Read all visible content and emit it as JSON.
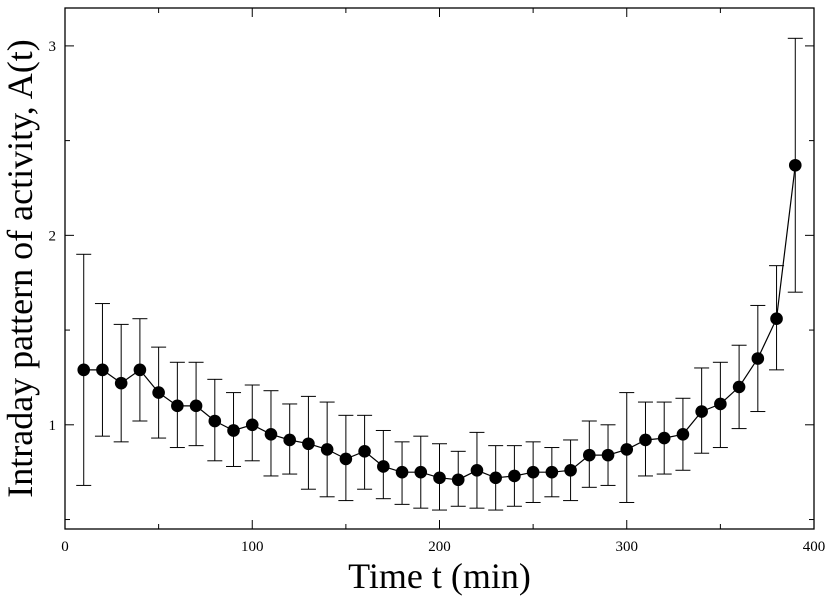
{
  "chart_data": {
    "type": "line",
    "xlabel": "Time t (min)",
    "ylabel": "Intraday pattern of activity, A(t)",
    "xlim": [
      0,
      400
    ],
    "ylim": [
      0.45,
      3.2
    ],
    "x_ticks": [
      0,
      100,
      200,
      300,
      400
    ],
    "y_ticks": [
      1,
      2,
      3
    ],
    "x_tick_labels": [
      "0",
      "100",
      "200",
      "300",
      "400"
    ],
    "y_tick_labels": [
      "1",
      "2",
      "3"
    ],
    "grid": false,
    "legend": "none",
    "marker": "filled-circle",
    "error_bars": true,
    "colors": {
      "series": "#000000",
      "axes": "#000000",
      "background": "#ffffff"
    },
    "series": [
      {
        "x": [
          10,
          20,
          30,
          40,
          50,
          60,
          70,
          80,
          90,
          100,
          110,
          120,
          130,
          140,
          150,
          160,
          170,
          180,
          190,
          200,
          210,
          220,
          230,
          240,
          250,
          260,
          270,
          280,
          290,
          300,
          310,
          320,
          330,
          340,
          350,
          360,
          370,
          380,
          390
        ],
        "y": [
          1.29,
          1.29,
          1.22,
          1.29,
          1.17,
          1.1,
          1.1,
          1.02,
          0.97,
          1.0,
          0.95,
          0.92,
          0.9,
          0.87,
          0.82,
          0.86,
          0.78,
          0.75,
          0.75,
          0.72,
          0.71,
          0.76,
          0.72,
          0.73,
          0.75,
          0.75,
          0.76,
          0.84,
          0.84,
          0.87,
          0.92,
          0.93,
          0.95,
          1.07,
          1.11,
          1.2,
          1.35,
          1.56,
          2.37
        ],
        "y_low": [
          0.68,
          0.94,
          0.91,
          1.02,
          0.93,
          0.88,
          0.89,
          0.81,
          0.78,
          0.81,
          0.73,
          0.74,
          0.66,
          0.62,
          0.6,
          0.66,
          0.61,
          0.58,
          0.56,
          0.55,
          0.57,
          0.56,
          0.55,
          0.57,
          0.59,
          0.62,
          0.6,
          0.67,
          0.68,
          0.59,
          0.73,
          0.74,
          0.76,
          0.85,
          0.88,
          0.98,
          1.07,
          1.29,
          1.7
        ],
        "y_high": [
          1.9,
          1.64,
          1.53,
          1.56,
          1.41,
          1.33,
          1.33,
          1.24,
          1.17,
          1.21,
          1.18,
          1.11,
          1.15,
          1.12,
          1.05,
          1.05,
          0.97,
          0.91,
          0.94,
          0.9,
          0.86,
          0.96,
          0.89,
          0.89,
          0.91,
          0.88,
          0.92,
          1.02,
          1.0,
          1.17,
          1.12,
          1.12,
          1.14,
          1.3,
          1.33,
          1.42,
          1.63,
          1.84,
          3.04
        ]
      }
    ]
  }
}
